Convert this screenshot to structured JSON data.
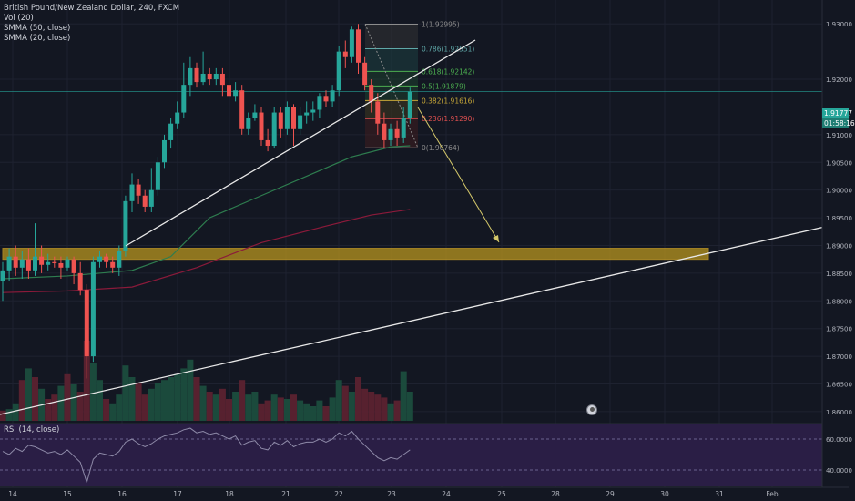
{
  "legend": {
    "title": "British Pound/New Zealand Dollar, 240, FXCM",
    "vol": "Vol (20)",
    "smma50": "SMMA (50, close)",
    "smma20": "SMMA (20, close)"
  },
  "rsi_label": "RSI (14, close)",
  "price_tags": {
    "last": "1.91777",
    "countdown": "01:58:16"
  },
  "colors": {
    "background": "#131722",
    "up": "#26a69a",
    "down": "#ef5350",
    "support_zone": "#b8951e",
    "projection": "#d4c86a",
    "smma50": "#2e7d4f",
    "smma20": "#8b1a3a",
    "rsi_bg": "#2a1e45"
  },
  "chart_data": {
    "type": "candlestick",
    "title": "British Pound/New Zealand Dollar, 240, FXCM",
    "ylim": [
      1.859,
      1.933
    ],
    "yticks": [
      "1.93000",
      "1.92000",
      "1.91000",
      "1.90500",
      "1.90000",
      "1.89500",
      "1.89000",
      "1.88500",
      "1.88000",
      "1.87500",
      "1.87000",
      "1.86500",
      "1.86000"
    ],
    "yticks_values": [
      1.93,
      1.92,
      1.91,
      1.905,
      1.9,
      1.895,
      1.89,
      1.885,
      1.88,
      1.875,
      1.87,
      1.865,
      1.86
    ],
    "xticks": [
      "14",
      "15",
      "16",
      "17",
      "18",
      "21",
      "22",
      "23",
      "24",
      "25",
      "28",
      "29",
      "30",
      "31",
      "Feb"
    ],
    "candles": [
      [
        1.8835,
        1.8855,
        1.88,
        1.887
      ],
      [
        1.8855,
        1.888,
        1.8835,
        1.8895
      ],
      [
        1.888,
        1.886,
        1.8845,
        1.89
      ],
      [
        1.886,
        1.8875,
        1.884,
        1.889
      ],
      [
        1.8875,
        1.8855,
        1.884,
        1.8895
      ],
      [
        1.8855,
        1.888,
        1.8845,
        1.894
      ],
      [
        1.888,
        1.8865,
        1.885,
        1.89
      ],
      [
        1.8865,
        1.887,
        1.8855,
        1.8885
      ],
      [
        1.887,
        1.8868,
        1.886,
        1.888
      ],
      [
        1.8868,
        1.886,
        1.884,
        1.888
      ],
      [
        1.886,
        1.8875,
        1.8855,
        1.888
      ],
      [
        1.8875,
        1.885,
        1.883,
        1.888
      ],
      [
        1.885,
        1.882,
        1.881,
        1.887
      ],
      [
        1.882,
        1.87,
        1.866,
        1.883
      ],
      [
        1.87,
        1.887,
        1.869,
        1.888
      ],
      [
        1.887,
        1.888,
        1.886,
        1.889
      ],
      [
        1.888,
        1.887,
        1.886,
        1.8885
      ],
      [
        1.887,
        1.886,
        1.885,
        1.888
      ],
      [
        1.886,
        1.889,
        1.8845,
        1.89
      ],
      [
        1.889,
        1.898,
        1.888,
        1.899
      ],
      [
        1.898,
        1.901,
        1.896,
        1.903
      ],
      [
        1.901,
        1.899,
        1.8975,
        1.902
      ],
      [
        1.899,
        1.897,
        1.896,
        1.9
      ],
      [
        1.897,
        1.9,
        1.896,
        1.904
      ],
      [
        1.9,
        1.905,
        1.899,
        1.906
      ],
      [
        1.905,
        1.909,
        1.904,
        1.91
      ],
      [
        1.909,
        1.912,
        1.9075,
        1.913
      ],
      [
        1.912,
        1.914,
        1.911,
        1.916
      ],
      [
        1.914,
        1.919,
        1.913,
        1.923
      ],
      [
        1.919,
        1.922,
        1.917,
        1.924
      ],
      [
        1.922,
        1.9195,
        1.9185,
        1.923
      ],
      [
        1.9195,
        1.921,
        1.919,
        1.925
      ],
      [
        1.921,
        1.92,
        1.919,
        1.922
      ],
      [
        1.92,
        1.921,
        1.919,
        1.922
      ],
      [
        1.921,
        1.919,
        1.917,
        1.922
      ],
      [
        1.919,
        1.917,
        1.916,
        1.92
      ],
      [
        1.917,
        1.918,
        1.916,
        1.9195
      ],
      [
        1.918,
        1.911,
        1.91,
        1.919
      ],
      [
        1.911,
        1.913,
        1.91,
        1.914
      ],
      [
        1.913,
        1.914,
        1.9125,
        1.9155
      ],
      [
        1.914,
        1.909,
        1.908,
        1.915
      ],
      [
        1.909,
        1.908,
        1.907,
        1.911
      ],
      [
        1.908,
        1.914,
        1.9075,
        1.915
      ],
      [
        1.914,
        1.911,
        1.9095,
        1.915
      ],
      [
        1.911,
        1.915,
        1.91,
        1.916
      ],
      [
        1.915,
        1.911,
        1.908,
        1.9155
      ],
      [
        1.911,
        1.9135,
        1.91,
        1.915
      ],
      [
        1.9135,
        1.914,
        1.912,
        1.916
      ],
      [
        1.914,
        1.9145,
        1.9125,
        1.916
      ],
      [
        1.9145,
        1.917,
        1.913,
        1.9175
      ],
      [
        1.917,
        1.916,
        1.915,
        1.918
      ],
      [
        1.916,
        1.918,
        1.915,
        1.919
      ],
      [
        1.918,
        1.925,
        1.917,
        1.926
      ],
      [
        1.925,
        1.924,
        1.922,
        1.927
      ],
      [
        1.924,
        1.929,
        1.923,
        1.9295
      ],
      [
        1.929,
        1.923,
        1.921,
        1.93
      ],
      [
        1.923,
        1.919,
        1.918,
        1.924
      ],
      [
        1.919,
        1.916,
        1.914,
        1.92
      ],
      [
        1.916,
        1.912,
        1.91,
        1.9175
      ],
      [
        1.912,
        1.909,
        1.9075,
        1.914
      ],
      [
        1.909,
        1.911,
        1.908,
        1.912
      ],
      [
        1.911,
        1.9095,
        1.908,
        1.9125
      ],
      [
        1.9095,
        1.913,
        1.9085,
        1.915
      ],
      [
        1.913,
        1.9178,
        1.912,
        1.9185
      ]
    ],
    "volume": [
      [
        7,
        "down"
      ],
      [
        8,
        "up"
      ],
      [
        12,
        "up"
      ],
      [
        28,
        "down"
      ],
      [
        36,
        "up"
      ],
      [
        30,
        "down"
      ],
      [
        22,
        "up"
      ],
      [
        15,
        "down"
      ],
      [
        18,
        "down"
      ],
      [
        24,
        "up"
      ],
      [
        32,
        "down"
      ],
      [
        25,
        "up"
      ],
      [
        20,
        "down"
      ],
      [
        55,
        "down"
      ],
      [
        40,
        "up"
      ],
      [
        28,
        "up"
      ],
      [
        15,
        "down"
      ],
      [
        12,
        "up"
      ],
      [
        18,
        "up"
      ],
      [
        38,
        "up"
      ],
      [
        30,
        "up"
      ],
      [
        26,
        "down"
      ],
      [
        18,
        "down"
      ],
      [
        22,
        "up"
      ],
      [
        26,
        "up"
      ],
      [
        28,
        "up"
      ],
      [
        30,
        "up"
      ],
      [
        32,
        "up"
      ],
      [
        36,
        "up"
      ],
      [
        42,
        "up"
      ],
      [
        30,
        "down"
      ],
      [
        24,
        "up"
      ],
      [
        20,
        "down"
      ],
      [
        18,
        "up"
      ],
      [
        22,
        "down"
      ],
      [
        15,
        "down"
      ],
      [
        20,
        "up"
      ],
      [
        28,
        "down"
      ],
      [
        18,
        "up"
      ],
      [
        20,
        "up"
      ],
      [
        12,
        "down"
      ],
      [
        14,
        "down"
      ],
      [
        18,
        "up"
      ],
      [
        16,
        "down"
      ],
      [
        15,
        "up"
      ],
      [
        18,
        "down"
      ],
      [
        14,
        "up"
      ],
      [
        12,
        "up"
      ],
      [
        10,
        "up"
      ],
      [
        14,
        "up"
      ],
      [
        10,
        "down"
      ],
      [
        16,
        "up"
      ],
      [
        28,
        "up"
      ],
      [
        24,
        "down"
      ],
      [
        20,
        "up"
      ],
      [
        30,
        "down"
      ],
      [
        22,
        "down"
      ],
      [
        20,
        "down"
      ],
      [
        18,
        "down"
      ],
      [
        16,
        "down"
      ],
      [
        12,
        "up"
      ],
      [
        14,
        "down"
      ],
      [
        34,
        "up"
      ],
      [
        20,
        "up"
      ]
    ],
    "smma50": [
      [
        0,
        1.884
      ],
      [
        10,
        1.8845
      ],
      [
        20,
        1.8855
      ],
      [
        26,
        1.888
      ],
      [
        32,
        1.895
      ],
      [
        40,
        1.899
      ],
      [
        48,
        1.903
      ],
      [
        54,
        1.906
      ],
      [
        60,
        1.9078
      ],
      [
        63,
        1.908
      ]
    ],
    "smma20": [
      [
        0,
        1.8815
      ],
      [
        10,
        1.8818
      ],
      [
        20,
        1.8825
      ],
      [
        30,
        1.886
      ],
      [
        40,
        1.8905
      ],
      [
        50,
        1.8935
      ],
      [
        57,
        1.8955
      ],
      [
        63,
        1.8965
      ]
    ],
    "fibonacci": {
      "levels": [
        {
          "ratio": "1",
          "price": 1.92995,
          "label": "1(1.92995)",
          "color": "#8c8c8c"
        },
        {
          "ratio": "0.786",
          "price": 1.92551,
          "label": "0.786(1.92551)",
          "color": "#5fa8a8"
        },
        {
          "ratio": "0.618",
          "price": 1.92142,
          "label": "0.618(1.92142)",
          "color": "#4caf50"
        },
        {
          "ratio": "0.5",
          "price": 1.91879,
          "label": "0.5(1.91879)",
          "color": "#4caf50"
        },
        {
          "ratio": "0.382",
          "price": 1.91616,
          "label": "0.382(1.91616)",
          "color": "#c8a838"
        },
        {
          "ratio": "0.236",
          "price": 1.9129,
          "label": "0.236(1.91290)",
          "color": "#e05050"
        },
        {
          "ratio": "0",
          "price": 1.90764,
          "label": "0(1.90764)",
          "color": "#8c8c8c"
        }
      ]
    },
    "support_zone": {
      "top": 1.8895,
      "bottom": 1.8875
    },
    "last_price": 1.91777,
    "rsi": {
      "ylim": [
        30,
        70
      ],
      "yticks": [
        "60.0000",
        "40.0000"
      ],
      "yticks_values": [
        60,
        40
      ],
      "values": [
        52,
        50,
        54,
        52,
        56,
        55,
        53,
        51,
        52,
        50,
        53,
        49,
        45,
        32,
        47,
        51,
        50,
        49,
        52,
        58,
        60,
        57,
        55,
        57,
        60,
        62,
        63,
        64,
        66,
        67,
        64,
        65,
        63,
        64,
        62,
        60,
        62,
        56,
        58,
        59,
        54,
        53,
        58,
        56,
        59,
        55,
        57,
        58,
        58,
        60,
        58,
        60,
        64,
        62,
        65,
        60,
        56,
        52,
        48,
        46,
        48,
        47,
        50,
        53
      ]
    }
  }
}
